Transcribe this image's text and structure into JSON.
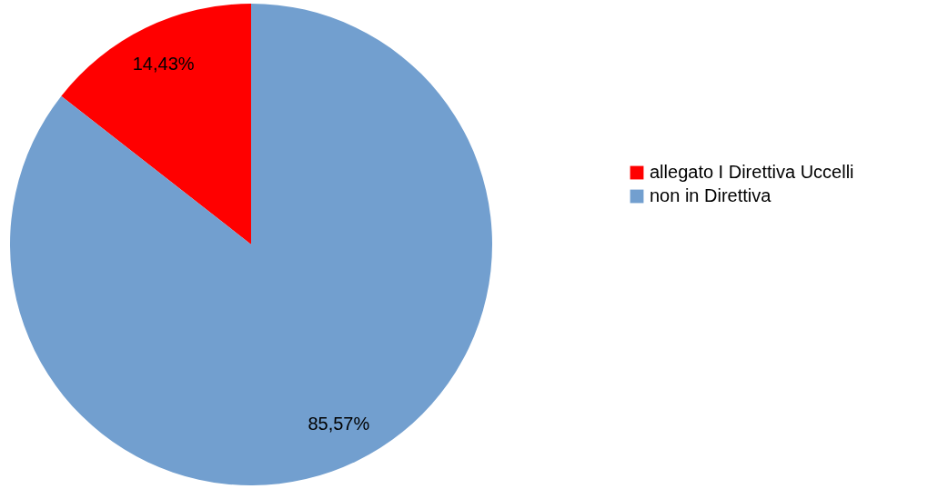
{
  "chart_data": {
    "type": "pie",
    "categories": [
      "allegato I Direttiva Uccelli",
      "non in Direttiva"
    ],
    "values": [
      14.43,
      85.57
    ],
    "colors": [
      "#ff0000",
      "#729fcf"
    ],
    "value_labels": [
      "14,43%",
      "85,57%"
    ],
    "legend": "right"
  }
}
